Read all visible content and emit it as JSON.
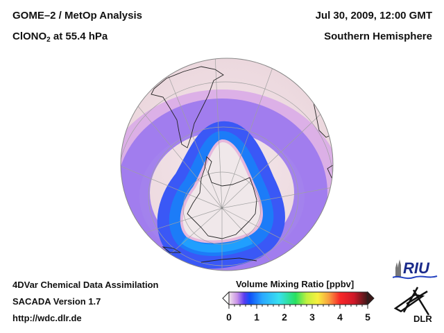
{
  "header": {
    "title": "GOME–2 / MetOp Analysis",
    "species_main": "ClONO",
    "species_sub": "2",
    "species_rest": " at 55.4 hPa",
    "date": "Jul 30, 2009, 12:00 GMT",
    "hemisphere": "Southern Hemisphere"
  },
  "footer": {
    "line1": "4DVar Chemical Data Assimilation",
    "line2": "SACADA Version 1.7",
    "line3": "http://wdc.dlr.de"
  },
  "colorbar": {
    "label": "Volume Mixing Ratio [ppbv]",
    "min": 0,
    "max": 5,
    "ticks": [
      "0",
      "1",
      "2",
      "3",
      "4",
      "5"
    ],
    "stops": [
      {
        "v": 0.0,
        "color": "#f2e6ea"
      },
      {
        "v": 0.3,
        "color": "#c890e8"
      },
      {
        "v": 0.55,
        "color": "#5a3cf0"
      },
      {
        "v": 0.75,
        "color": "#1050f8"
      },
      {
        "v": 1.2,
        "color": "#2aa8ff"
      },
      {
        "v": 1.8,
        "color": "#38e0f0"
      },
      {
        "v": 2.4,
        "color": "#28e060"
      },
      {
        "v": 2.8,
        "color": "#c0f040"
      },
      {
        "v": 3.2,
        "color": "#f8f040"
      },
      {
        "v": 3.6,
        "color": "#f8a040"
      },
      {
        "v": 4.0,
        "color": "#f82828"
      },
      {
        "v": 4.5,
        "color": "#d01828"
      },
      {
        "v": 5.0,
        "color": "#3a1818"
      }
    ]
  },
  "map": {
    "projection": "orthographic, South Pole view",
    "field": "ClONO2 collar around Antarctic polar vortex, max ~0.8 ppbv (blue ring), near 0 inside vortex"
  },
  "logos": {
    "riu": "RIU",
    "dlr": "DLR"
  }
}
